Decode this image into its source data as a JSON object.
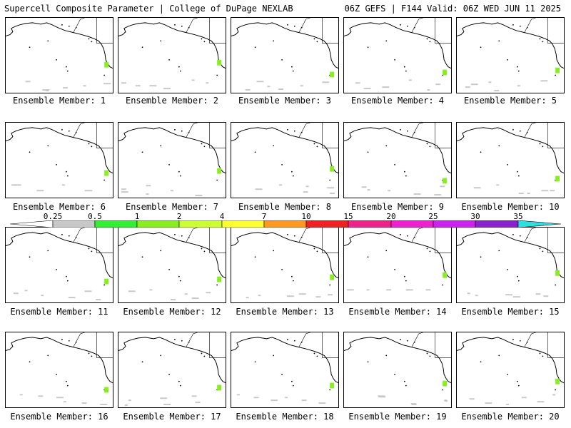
{
  "header": {
    "left_title": "Supercell Composite Parameter | College of DuPage NEXLAB",
    "right_title": "06Z GEFS | F144 Valid: 06Z WED JUN 11 2025"
  },
  "panels": [
    {
      "label": "Ensemble Member: 1"
    },
    {
      "label": "Ensemble Member: 2"
    },
    {
      "label": "Ensemble Member: 3"
    },
    {
      "label": "Ensemble Member: 4"
    },
    {
      "label": "Ensemble Member: 5"
    },
    {
      "label": "Ensemble Member: 6"
    },
    {
      "label": "Ensemble Member: 7"
    },
    {
      "label": "Ensemble Member: 8"
    },
    {
      "label": "Ensemble Member: 9"
    },
    {
      "label": "Ensemble Member: 10"
    },
    {
      "label": "Ensemble Member: 11"
    },
    {
      "label": "Ensemble Member: 12"
    },
    {
      "label": "Ensemble Member: 13"
    },
    {
      "label": "Ensemble Member: 14"
    },
    {
      "label": "Ensemble Member: 15"
    },
    {
      "label": "Ensemble Member: 16"
    },
    {
      "label": "Ensemble Member: 17"
    },
    {
      "label": "Ensemble Member: 18"
    },
    {
      "label": "Ensemble Member: 19"
    },
    {
      "label": "Ensemble Member: 20"
    }
  ],
  "colorbar": {
    "labels": [
      "0.25",
      "0.5",
      "1",
      "2",
      "4",
      "7",
      "10",
      "15",
      "20",
      "25",
      "30",
      "35"
    ],
    "colors": [
      "#c8c8c8",
      "#33ee33",
      "#88ee22",
      "#ccff33",
      "#ffff33",
      "#ff9922",
      "#ee2222",
      "#ee2288",
      "#ee22cc",
      "#cc22ee",
      "#8822cc",
      "#aa66dd",
      "#33dddd"
    ]
  }
}
